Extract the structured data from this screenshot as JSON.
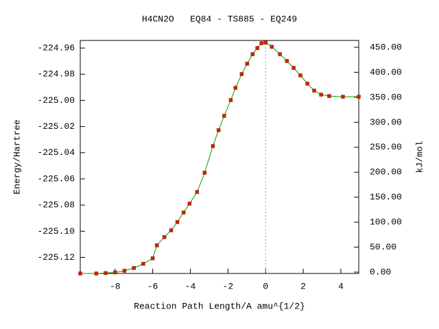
{
  "chart_data": {
    "type": "line",
    "title": "H4CN2O   EQ84 - TS885 - EQ249",
    "xlabel": "Reaction Path Length/A amu^{1/2}",
    "ylabel": "Energy/Hartree",
    "y2label": "kJ/mol",
    "x": [
      -9.85,
      -9,
      -8.5,
      -8,
      -7.5,
      -7,
      -6.5,
      -6,
      -5.78,
      -5.38,
      -5.02,
      -4.69,
      -4.36,
      -4.04,
      -3.64,
      -3.24,
      -2.8,
      -2.5,
      -2.2,
      -1.85,
      -1.6,
      -1.27,
      -0.98,
      -0.69,
      -0.44,
      -0.22,
      0,
      0.33,
      0.76,
      1.13,
      1.49,
      1.85,
      2.22,
      2.58,
      2.95,
      3.38,
      4.11,
      4.95
    ],
    "series": [
      {
        "color": "#cc2200",
        "line_color": "#00a000",
        "values": [
          -225.1323,
          -225.1323,
          -225.132,
          -225.1315,
          -225.1302,
          -225.1281,
          -225.1249,
          -225.1207,
          -225.1108,
          -225.1045,
          -225.0993,
          -225.093,
          -225.0857,
          -225.0789,
          -225.07,
          -225.0553,
          -225.0349,
          -225.0228,
          -225.0118,
          -224.9998,
          -224.9904,
          -224.9799,
          -224.972,
          -224.9647,
          -224.96,
          -224.9563,
          -224.9558,
          -224.959,
          -224.9647,
          -224.9699,
          -224.9752,
          -224.9809,
          -224.9872,
          -224.9925,
          -224.9956,
          -224.9967,
          -224.9972,
          -224.9972
        ]
      }
    ],
    "vline": 0,
    "xlim": [
      -9.85,
      4.95
    ],
    "xticks": [
      -8,
      -6,
      -4,
      -2,
      0,
      2,
      4
    ],
    "ylim": [
      -225.1323,
      -224.9542
    ],
    "yticks": [
      -224.96,
      -224.98,
      {
        "value": -225.0,
        "label": "-225.00"
      },
      -225.02,
      -225.04,
      -225.06,
      -225.08,
      {
        "value": -225.1,
        "label": "-225.10"
      },
      -225.12
    ],
    "y2lim": [
      -2.7,
      463.7
    ],
    "y2ticks": [
      {
        "value": 0,
        "label": "0.00"
      },
      {
        "value": 50,
        "label": "50.00"
      },
      {
        "value": 100,
        "label": "100.00"
      },
      {
        "value": 150,
        "label": "150.00"
      },
      {
        "value": 200,
        "label": "200.00"
      },
      {
        "value": 250,
        "label": "250.00"
      },
      {
        "value": 300,
        "label": "300.00"
      },
      {
        "value": 350,
        "label": "350.00"
      },
      {
        "value": 400,
        "label": "400.00"
      },
      {
        "value": 450,
        "label": "450.00"
      }
    ]
  }
}
